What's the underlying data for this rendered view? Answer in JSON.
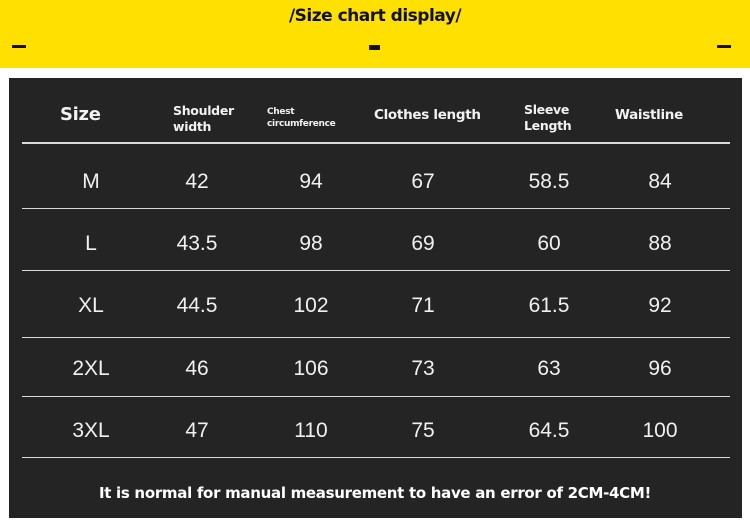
{
  "title": "/Size chart display/",
  "colors": {
    "banner": "#ffe000",
    "panel": "#242424"
  },
  "headers": [
    "Size",
    "Shoulder width",
    "Chest circumference",
    "Clothes length",
    "Sleeve Length",
    "Waistline"
  ],
  "header_lines": {
    "shoulder": [
      "Shoulder",
      "width"
    ],
    "chest": [
      "Chest",
      "circumference"
    ],
    "sleeve": [
      "Sleeve",
      "Length"
    ]
  },
  "rows": [
    [
      "M",
      "42",
      "94",
      "67",
      "58.5",
      "84"
    ],
    [
      "L",
      "43.5",
      "98",
      "69",
      "60",
      "88"
    ],
    [
      "XL",
      "44.5",
      "102",
      "71",
      "61.5",
      "92"
    ],
    [
      "2XL",
      "46",
      "106",
      "73",
      "63",
      "96"
    ],
    [
      "3XL",
      "47",
      "110",
      "75",
      "64.5",
      "100"
    ]
  ],
  "footer": "It is normal for manual measurement to have an error of 2CM-4CM!"
}
